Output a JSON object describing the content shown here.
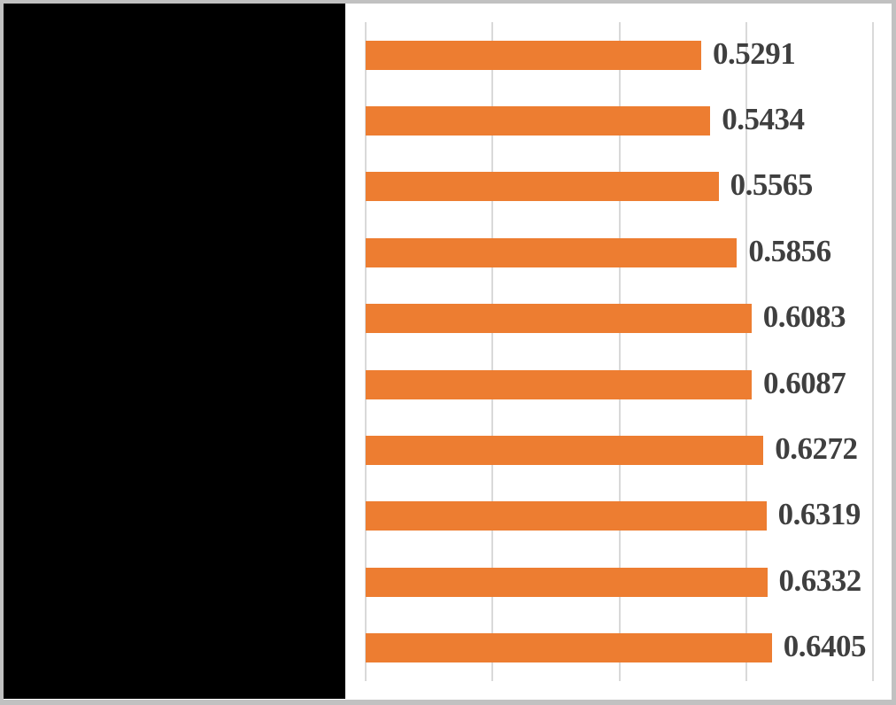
{
  "figure": {
    "frame_border_color": "#C1C1C1",
    "background_color": "#FFFFFF",
    "redaction_panel_color": "#000000",
    "note": "left portion of figure (category labels area) is covered by a solid black panel"
  },
  "chart_data": {
    "type": "bar",
    "orientation": "horizontal",
    "title": "",
    "xlabel": "",
    "ylabel": "",
    "categories": [
      "",
      "",
      "",
      "",
      "",
      "",
      "",
      "",
      "",
      ""
    ],
    "values": [
      0.5291,
      0.5434,
      0.5565,
      0.5856,
      0.6083,
      0.6087,
      0.6272,
      0.6319,
      0.6332,
      0.6405
    ],
    "data_labels": [
      "0.5291",
      "0.5434",
      "0.5565",
      "0.5856",
      "0.6083",
      "0.6087",
      "0.6272",
      "0.6319",
      "0.6332",
      "0.6405"
    ],
    "xlim": [
      0,
      0.8
    ],
    "x_ticks": [
      0,
      0.2,
      0.4,
      0.6,
      0.8
    ],
    "x_tick_labels_visible": false,
    "grid": "vertical",
    "legend": "none",
    "bar_color": "#ED7D31",
    "gridline_color": "#D9D9D9",
    "data_label_color": "#3F3F3F"
  }
}
